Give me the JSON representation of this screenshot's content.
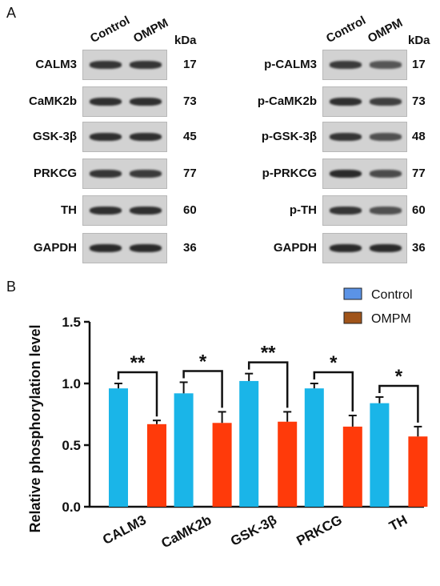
{
  "panels": {
    "a": "A",
    "b": "B"
  },
  "blot": {
    "col_control": "Control",
    "col_ompm": "OMPM",
    "kda": "kDa",
    "left": [
      {
        "label": "CALM3",
        "mw": "17",
        "c": 0.9,
        "o": 0.9
      },
      {
        "label": "CaMK2b",
        "mw": "73",
        "c": 0.95,
        "o": 0.95
      },
      {
        "label": "GSK-3β",
        "mw": "45",
        "c": 0.95,
        "o": 0.95
      },
      {
        "label": "PRKCG",
        "mw": "77",
        "c": 0.9,
        "o": 0.85
      },
      {
        "label": "TH",
        "mw": "60",
        "c": 0.95,
        "o": 0.95
      },
      {
        "label": "GAPDH",
        "mw": "36",
        "c": 1.0,
        "o": 1.0
      }
    ],
    "right": [
      {
        "label": "p-CALM3",
        "mw": "17",
        "c": 0.85,
        "o": 0.6
      },
      {
        "label": "p-CaMK2b",
        "mw": "73",
        "c": 0.95,
        "o": 0.8
      },
      {
        "label": "p-GSK-3β",
        "mw": "48",
        "c": 0.9,
        "o": 0.65
      },
      {
        "label": "p-PRKCG",
        "mw": "77",
        "c": 1.0,
        "o": 0.7
      },
      {
        "label": "p-TH",
        "mw": "60",
        "c": 0.9,
        "o": 0.65
      },
      {
        "label": "GAPDH",
        "mw": "36",
        "c": 1.0,
        "o": 1.0
      }
    ]
  },
  "chart_data": {
    "type": "bar",
    "categories": [
      "CALM3",
      "CaMK2b",
      "GSK-3β",
      "PRKCG",
      "TH"
    ],
    "series": [
      {
        "name": "Control",
        "values": [
          0.96,
          0.92,
          1.02,
          0.96,
          0.84
        ],
        "errors": [
          0.04,
          0.09,
          0.06,
          0.04,
          0.05
        ],
        "color": "#1ab5e8"
      },
      {
        "name": "OMPM",
        "values": [
          0.67,
          0.68,
          0.69,
          0.65,
          0.57
        ],
        "errors": [
          0.03,
          0.09,
          0.08,
          0.09,
          0.08
        ],
        "color": "#ff3a0a"
      }
    ],
    "significance": [
      "**",
      "*",
      "**",
      "*",
      "*"
    ],
    "ylabel": "Relative phosphorylation level",
    "ylim": [
      0,
      1.5
    ],
    "yticks": [
      "0.0",
      "0.5",
      "1.0",
      "1.5"
    ],
    "legend_position": "top-right",
    "legend_swatch_colors": [
      "#5b93e6",
      "#a0541a"
    ]
  }
}
